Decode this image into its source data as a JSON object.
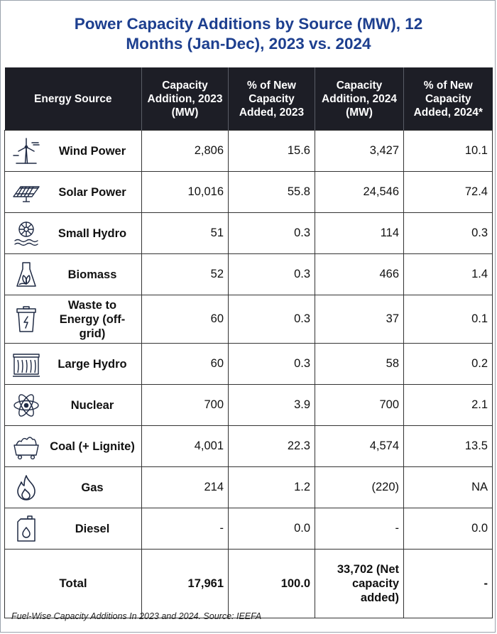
{
  "title": {
    "line1": "Power Capacity Additions by Source (MW), 12",
    "line2": "Months (Jan-Dec), 2023 vs. 2024"
  },
  "headers": [
    "Energy Source",
    "Capacity Addition, 2023 (MW)",
    "% of New Capacity Added, 2023",
    "Capacity Addition, 2024 (MW)",
    "% of New Capacity Added, 2024*"
  ],
  "rows": [
    {
      "icon": "wind-turbine-icon",
      "source": "Wind Power",
      "cap2023": "2,806",
      "pct2023": "15.6",
      "cap2024": "3,427",
      "pct2024": "10.1"
    },
    {
      "icon": "solar-panel-icon",
      "source": "Solar Power",
      "cap2023": "10,016",
      "pct2023": "55.8",
      "cap2024": "24,546",
      "pct2024": "72.4"
    },
    {
      "icon": "small-hydro-icon",
      "source": "Small Hydro",
      "cap2023": "51",
      "pct2023": "0.3",
      "cap2024": "114",
      "pct2024": "0.3"
    },
    {
      "icon": "biomass-icon",
      "source": "Biomass",
      "cap2023": "52",
      "pct2023": "0.3",
      "cap2024": "466",
      "pct2024": "1.4"
    },
    {
      "icon": "waste-bin-icon",
      "source": "Waste to Energy (off-grid)",
      "cap2023": "60",
      "pct2023": "0.3",
      "cap2024": "37",
      "pct2024": "0.1"
    },
    {
      "icon": "dam-icon",
      "source": "Large Hydro",
      "cap2023": "60",
      "pct2023": "0.3",
      "cap2024": "58",
      "pct2024": "0.2"
    },
    {
      "icon": "atom-icon",
      "source": "Nuclear",
      "cap2023": "700",
      "pct2023": "3.9",
      "cap2024": "700",
      "pct2024": "2.1"
    },
    {
      "icon": "coal-cart-icon",
      "source": "Coal (+ Lignite)",
      "cap2023": "4,001",
      "pct2023": "22.3",
      "cap2024": "4,574",
      "pct2024": "13.5"
    },
    {
      "icon": "flame-icon",
      "source": "Gas",
      "cap2023": "214",
      "pct2023": "1.2",
      "cap2024": "(220)",
      "pct2024": "NA"
    },
    {
      "icon": "fuel-canister-icon",
      "source": "Diesel",
      "cap2023": "-",
      "pct2023": "0.0",
      "cap2024": "-",
      "pct2024": "0.0"
    }
  ],
  "total": {
    "label": "Total",
    "cap2023": "17,961",
    "pct2023": "100.0",
    "cap2024": "33,702 (Net capacity added)",
    "pct2024": "-"
  },
  "caption": "Fuel-Wise Capacity Additions In 2023 and 2024. Source: IEEFA",
  "colors": {
    "title": "#1d3f8f",
    "header_bg": "#1d1e26",
    "header_text": "#ffffff"
  }
}
